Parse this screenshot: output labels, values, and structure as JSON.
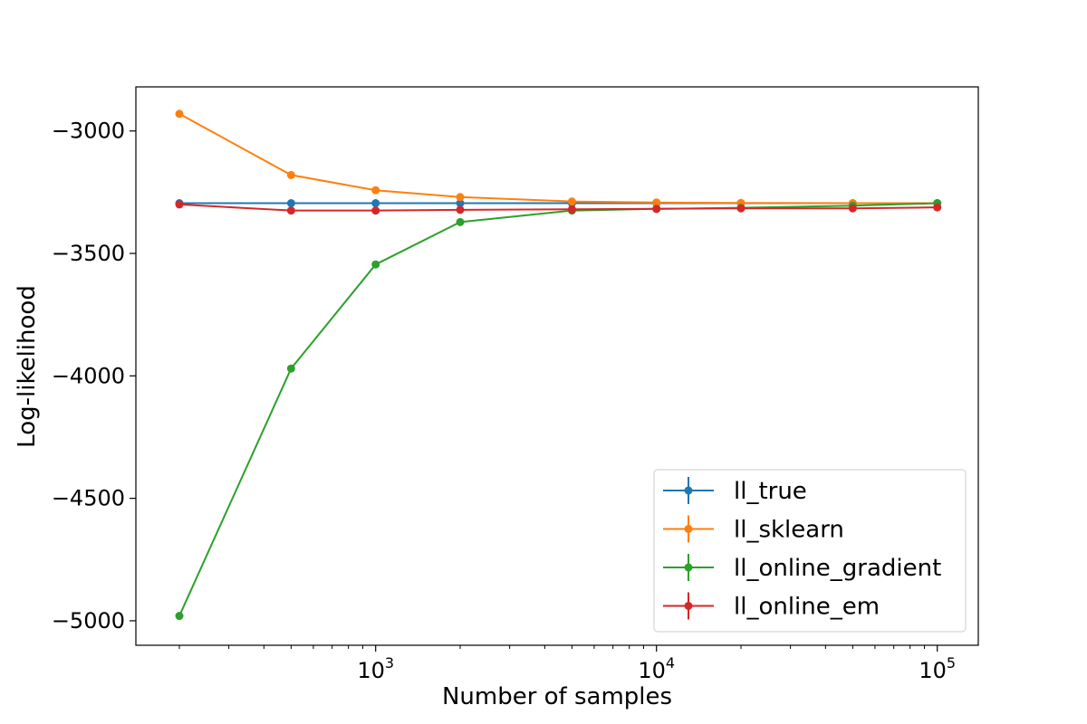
{
  "chart_data": {
    "type": "line",
    "xscale": "log",
    "xlabel": "Number of samples",
    "ylabel": "Log-likelihood",
    "xlim": [
      140,
      140000
    ],
    "ylim": [
      -5100,
      -2820
    ],
    "x": [
      200,
      500,
      1000,
      2000,
      5000,
      10000,
      20000,
      50000,
      100000
    ],
    "x_ticks": [
      {
        "value": 1000,
        "base": "10",
        "exp": "3"
      },
      {
        "value": 10000,
        "base": "10",
        "exp": "4"
      },
      {
        "value": 100000,
        "base": "10",
        "exp": "5"
      }
    ],
    "y_ticks": [
      {
        "value": -3000,
        "label": "−3000"
      },
      {
        "value": -3500,
        "label": "−3500"
      },
      {
        "value": -4000,
        "label": "−4000"
      },
      {
        "value": -4500,
        "label": "−4500"
      },
      {
        "value": -5000,
        "label": "−5000"
      }
    ],
    "legend_position": "lower-right",
    "series": [
      {
        "name": "ll_true",
        "color": "#1f77b4",
        "values": [
          -3295,
          -3295,
          -3295,
          -3295,
          -3295,
          -3295,
          -3295,
          -3295,
          -3295
        ]
      },
      {
        "name": "ll_sklearn",
        "color": "#ff7f0e",
        "values": [
          -2930,
          -3180,
          -3242,
          -3270,
          -3288,
          -3292,
          -3294,
          -3295,
          -3295
        ]
      },
      {
        "name": "ll_online_gradient",
        "color": "#2ca02c",
        "values": [
          -4980,
          -3970,
          -3545,
          -3372,
          -3325,
          -3318,
          -3314,
          -3305,
          -3295
        ]
      },
      {
        "name": "ll_online_em",
        "color": "#d62728",
        "values": [
          -3300,
          -3325,
          -3325,
          -3322,
          -3320,
          -3318,
          -3316,
          -3316,
          -3312
        ]
      }
    ]
  }
}
